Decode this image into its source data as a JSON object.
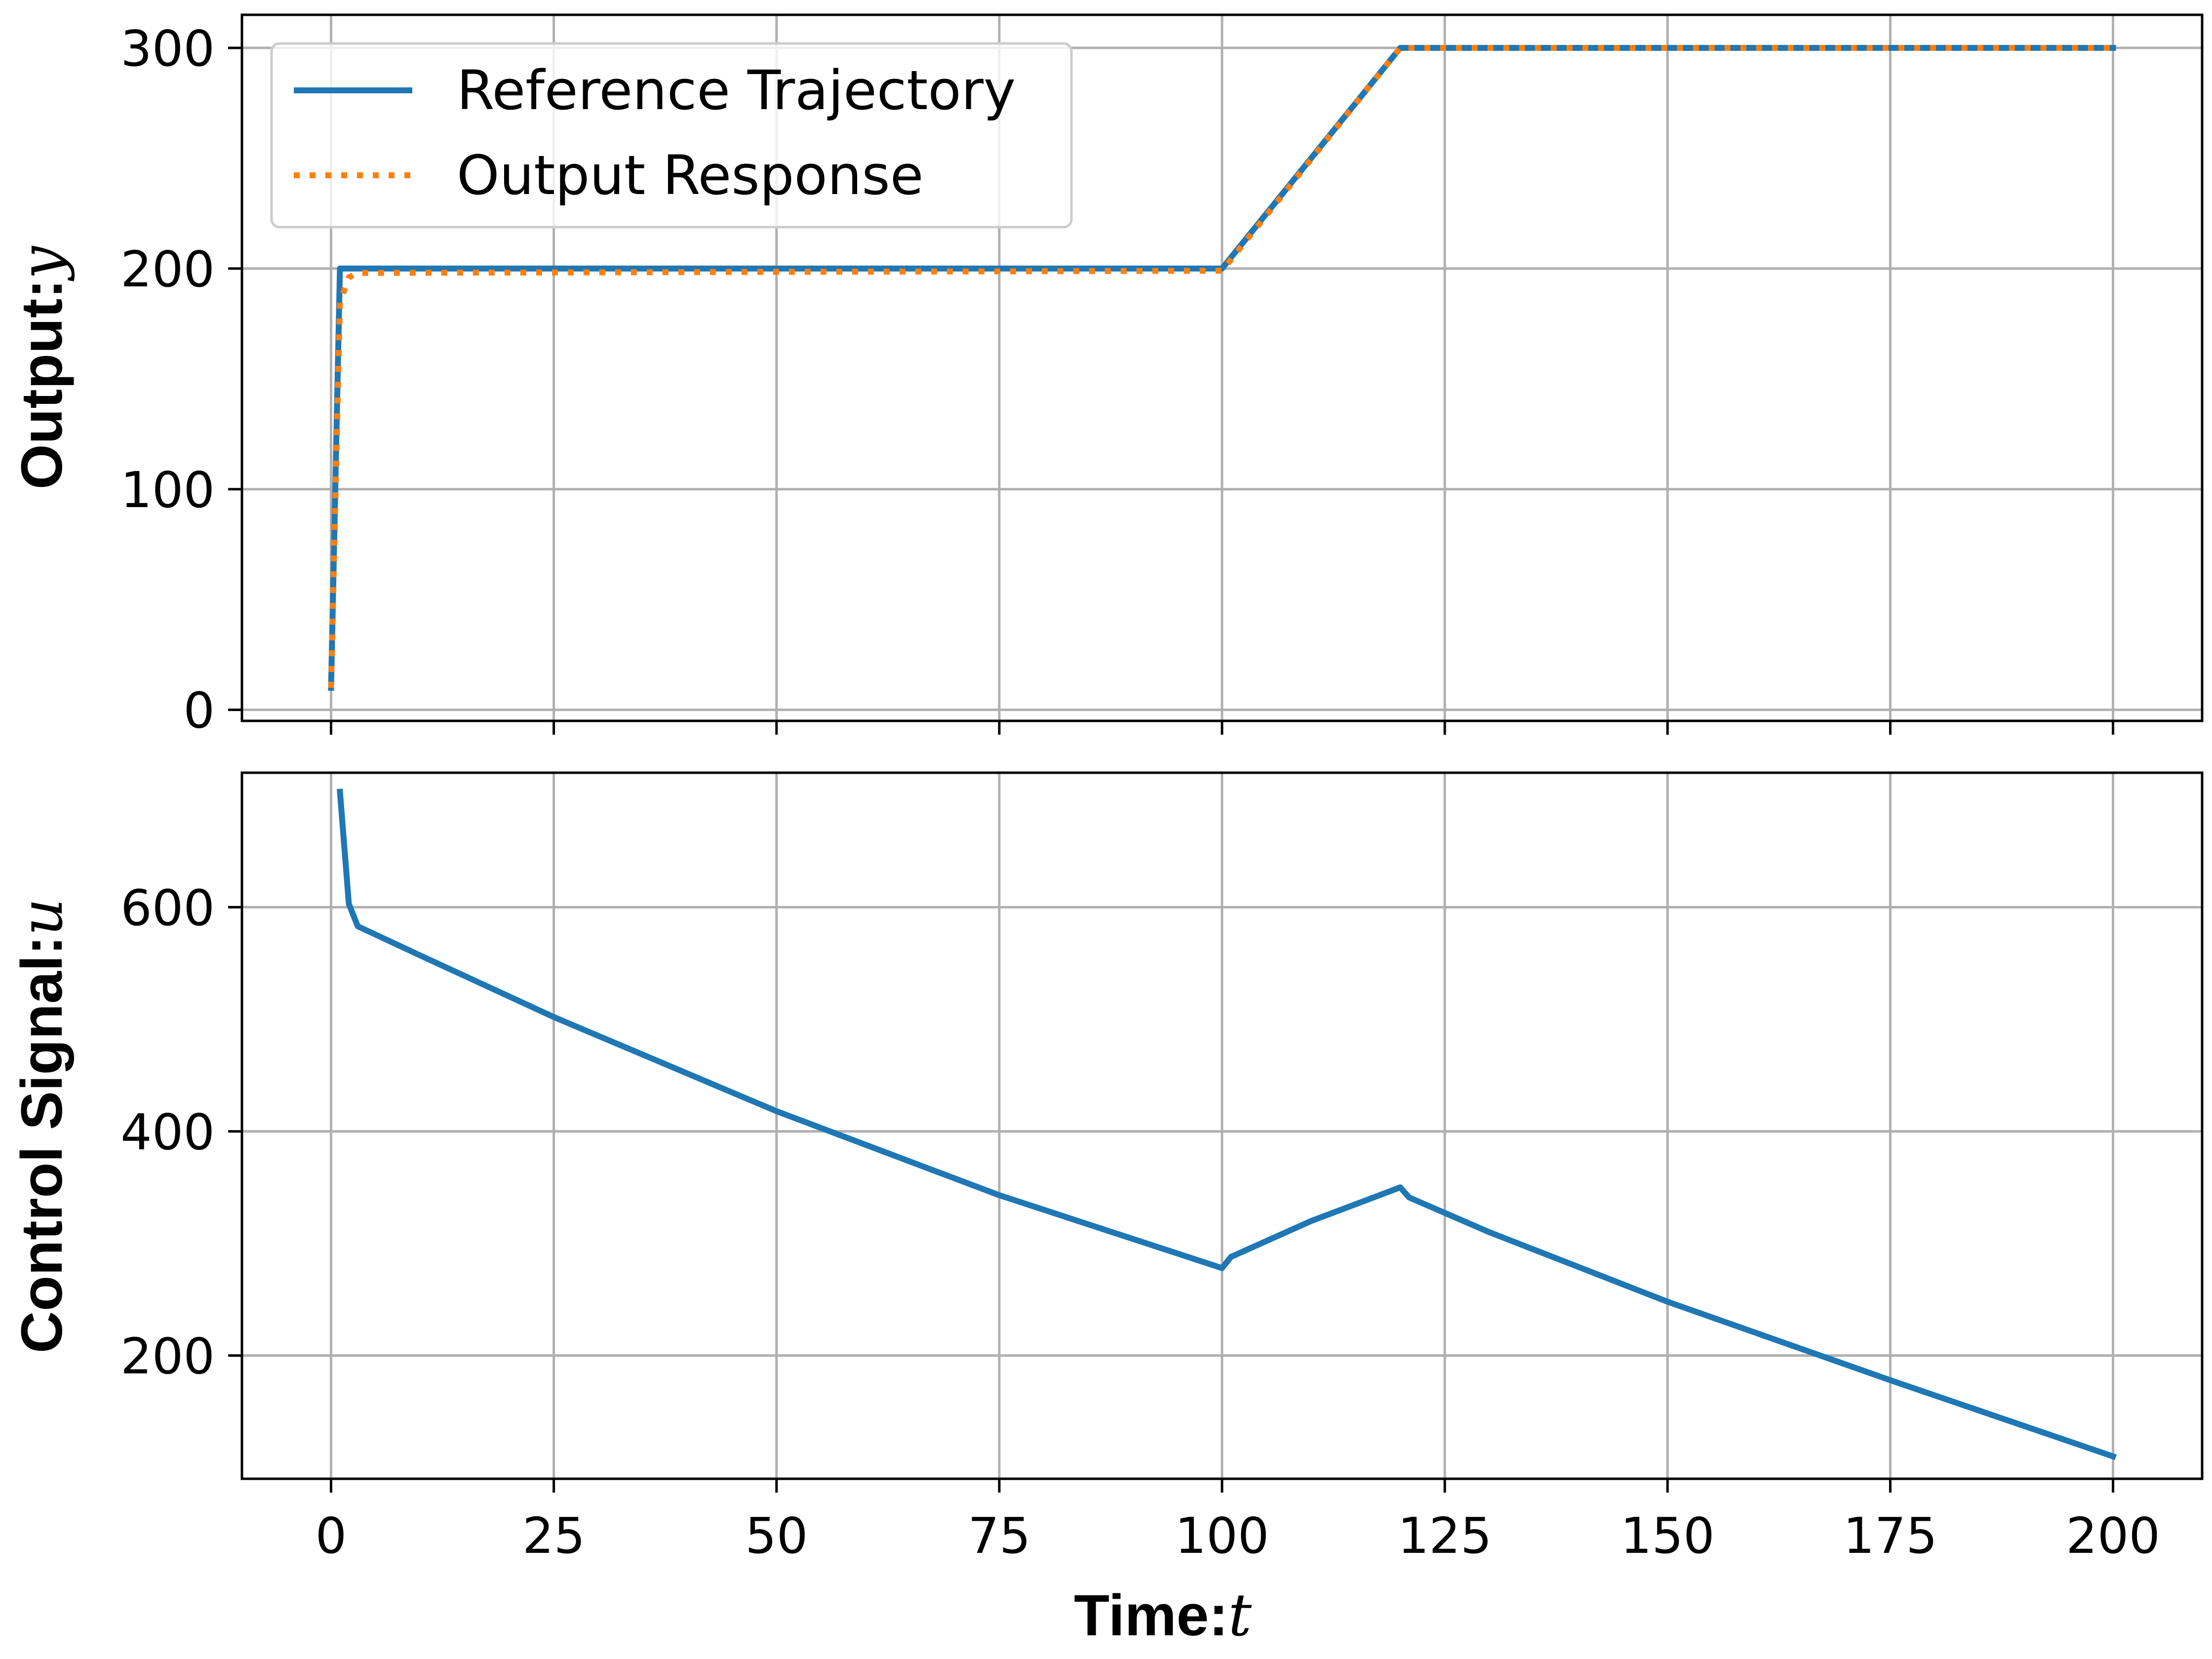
{
  "chart_data": [
    {
      "type": "line",
      "ylabel_text": "Output:",
      "ylabel_var": "y",
      "xlim": [
        -10,
        210
      ],
      "ylim": [
        -5,
        315
      ],
      "yticks": [
        0,
        100,
        200,
        300
      ],
      "xticks": [
        0,
        25,
        50,
        75,
        100,
        125,
        150,
        175,
        200
      ],
      "grid": true,
      "legend_position": "top-left",
      "series": [
        {
          "name": "Reference Trajectory",
          "color": "#1f77b4",
          "style": "solid",
          "x": [
            0,
            1,
            2,
            100,
            120,
            200
          ],
          "y": [
            10,
            200,
            200,
            200,
            300,
            300
          ]
        },
        {
          "name": "Output Response",
          "color": "#ff7f0e",
          "style": "dotted",
          "x": [
            0,
            1,
            2,
            3,
            100,
            120,
            200
          ],
          "y": [
            10,
            185,
            196,
            198,
            199,
            300,
            300
          ]
        }
      ]
    },
    {
      "type": "line",
      "ylabel_text": "Control Signal:",
      "ylabel_var": "u",
      "xlabel_text": "Time:",
      "xlabel_var": "t",
      "xlim": [
        -10,
        210
      ],
      "ylim": [
        90,
        720
      ],
      "yticks": [
        200,
        400,
        600
      ],
      "xticks": [
        0,
        25,
        50,
        75,
        100,
        125,
        150,
        175,
        200
      ],
      "xticklabels": [
        "0",
        "25",
        "50",
        "75",
        "100",
        "125",
        "150",
        "175",
        "200"
      ],
      "grid": true,
      "series": [
        {
          "color": "#1f77b4",
          "style": "solid",
          "x": [
            1,
            2,
            3,
            10,
            25,
            50,
            75,
            100,
            101,
            110,
            120,
            121,
            130,
            150,
            175,
            200
          ],
          "y": [
            703,
            603,
            583,
            557,
            502,
            418,
            343,
            278,
            288,
            320,
            350,
            341,
            310,
            248,
            178,
            110
          ]
        }
      ]
    }
  ]
}
